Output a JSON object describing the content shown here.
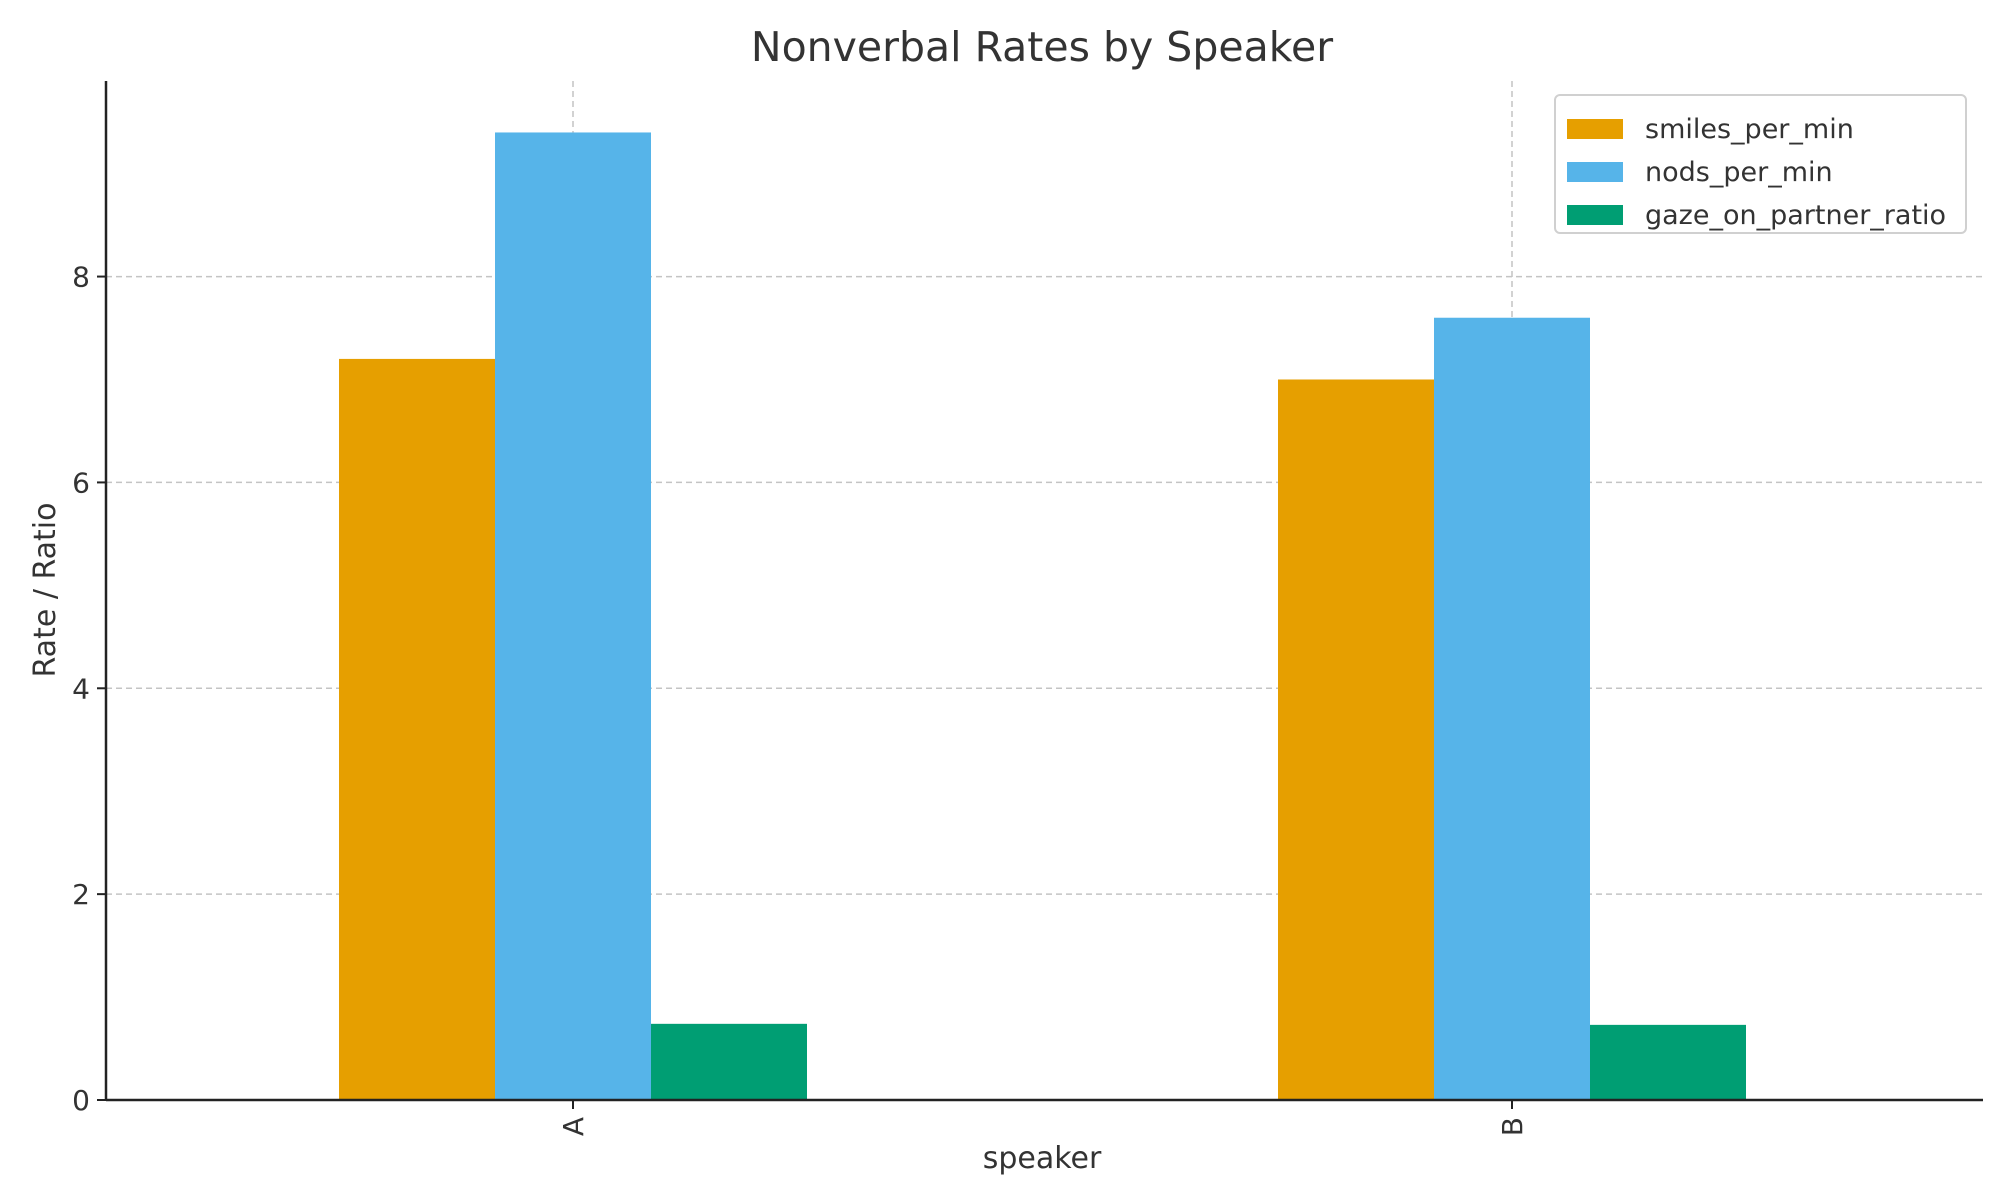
{
  "chart_data": {
    "type": "bar",
    "title": "Nonverbal Rates by Speaker",
    "xlabel": "speaker",
    "ylabel": "Rate / Ratio",
    "categories": [
      "A",
      "B"
    ],
    "series": [
      {
        "name": "smiles_per_min",
        "color": "#E69F00",
        "values": [
          7.2,
          7.0
        ]
      },
      {
        "name": "nods_per_min",
        "color": "#56B4E9",
        "values": [
          9.4,
          7.6
        ]
      },
      {
        "name": "gaze_on_partner_ratio",
        "color": "#009E73",
        "values": [
          0.74,
          0.73
        ]
      }
    ],
    "ylim": [
      0,
      9.9
    ],
    "yticks": [
      "0",
      "2",
      "4",
      "6",
      "8"
    ],
    "grid": true,
    "legend_position": "top-right"
  }
}
